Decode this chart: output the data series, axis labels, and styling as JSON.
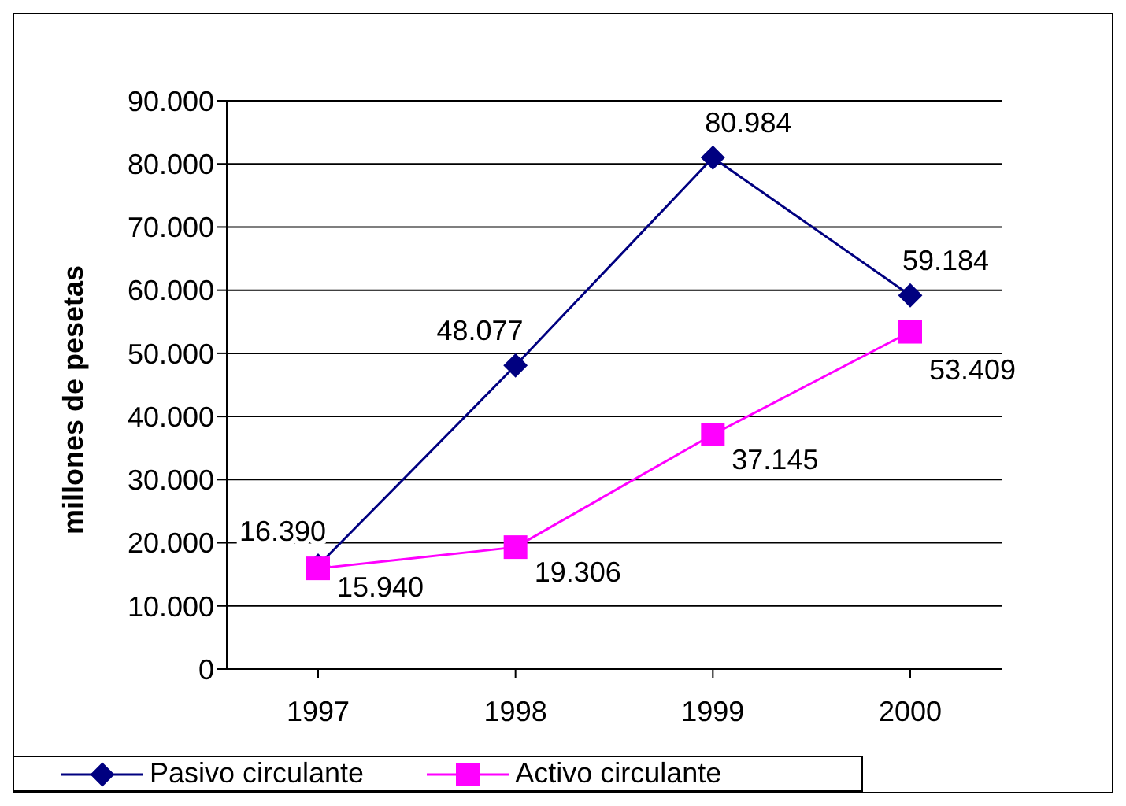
{
  "chart_data": {
    "type": "line",
    "ylabel": "millones de pesetas",
    "categories": [
      "1997",
      "1998",
      "1999",
      "2000"
    ],
    "series": [
      {
        "name": "Pasivo circulante",
        "color": "#000080",
        "marker": "diamond",
        "values": [
          16390,
          48077,
          80984,
          59184
        ],
        "value_labels": [
          "16.390",
          "48.077",
          "80.984",
          "59.184"
        ]
      },
      {
        "name": "Activo circulante",
        "color": "#ff00ff",
        "marker": "square",
        "values": [
          15940,
          19306,
          37145,
          53409
        ],
        "value_labels": [
          "15.940",
          "19.306",
          "37.145",
          "53.409"
        ]
      }
    ],
    "ylim": [
      0,
      90000
    ],
    "yticks": [
      {
        "value": 0,
        "label": "0"
      },
      {
        "value": 10000,
        "label": "10.000"
      },
      {
        "value": 20000,
        "label": "20.000"
      },
      {
        "value": 30000,
        "label": "30.000"
      },
      {
        "value": 40000,
        "label": "40.000"
      },
      {
        "value": 50000,
        "label": "50.000"
      },
      {
        "value": 60000,
        "label": "60.000"
      },
      {
        "value": 70000,
        "label": "70.000"
      },
      {
        "value": 80000,
        "label": "80.000"
      },
      {
        "value": 90000,
        "label": "90.000"
      }
    ],
    "grid": "y",
    "legend": "bottom left"
  }
}
